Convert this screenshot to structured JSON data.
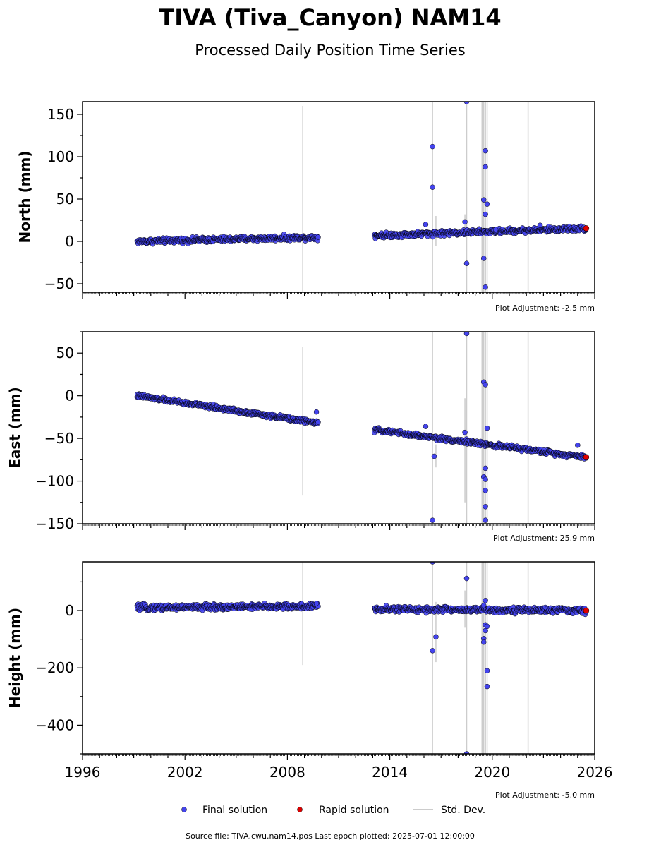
{
  "header": {
    "title": "TIVA (Tiva_Canyon) NAM14",
    "subtitle": "Processed Daily Position Time Series"
  },
  "footer": {
    "source": "Source file: TIVA.cwu.nam14.pos  Last epoch plotted: 2025-07-01 12:00:00"
  },
  "legend": {
    "final": "Final solution",
    "rapid": "Rapid solution",
    "std": "Std. Dev."
  },
  "colors": {
    "final": "#4444ee",
    "rapid": "#dd0000",
    "stddev": "#bbbbbb",
    "edge": "#000000"
  },
  "chart_data": [
    {
      "type": "scatter",
      "id": "north",
      "ylabel": "North (mm)",
      "ylim": [
        -60,
        165
      ],
      "yticks": [
        -50,
        0,
        50,
        100,
        150
      ],
      "xlim": [
        1996,
        2026
      ],
      "adjustment": "Plot Adjustment: -2.5 mm",
      "trend_segments": [
        [
          1999.2,
          0.0,
          2009.8,
          5.0
        ],
        [
          2013.1,
          7.0,
          2025.5,
          15.5
        ]
      ],
      "scatter": 3,
      "outliers": [
        [
          2016.5,
          112
        ],
        [
          2016.5,
          64
        ],
        [
          2018.5,
          165
        ],
        [
          2018.5,
          -26
        ],
        [
          2018.4,
          23
        ],
        [
          2019.6,
          107
        ],
        [
          2019.6,
          88
        ],
        [
          2019.5,
          49
        ],
        [
          2019.7,
          44
        ],
        [
          2019.6,
          32
        ],
        [
          2019.5,
          -20
        ],
        [
          2019.6,
          -54
        ],
        [
          2016.1,
          20
        ],
        [
          2022.8,
          19
        ],
        [
          2020.2,
          14
        ]
      ],
      "errorbars": [
        [
          2008.9,
          -60,
          160
        ],
        [
          2016.5,
          -60,
          165
        ],
        [
          2018.5,
          -60,
          165
        ],
        [
          2019.4,
          -60,
          165
        ],
        [
          2019.5,
          -60,
          165
        ],
        [
          2019.6,
          -60,
          165
        ],
        [
          2019.7,
          -60,
          165
        ],
        [
          2022.1,
          -60,
          165
        ],
        [
          2016.7,
          -5,
          30
        ],
        [
          2018.4,
          5,
          32
        ]
      ],
      "rapid": [
        2025.5,
        15.5
      ]
    },
    {
      "type": "scatter",
      "id": "east",
      "ylabel": "East (mm)",
      "ylim": [
        -150,
        75
      ],
      "yticks": [
        -150,
        -100,
        -50,
        0,
        50
      ],
      "xlim": [
        1996,
        2026
      ],
      "adjustment": "Plot Adjustment: 25.9 mm",
      "trend_segments": [
        [
          1999.2,
          0.0,
          2009.8,
          -32.0
        ],
        [
          2013.1,
          -40.0,
          2025.5,
          -72.0
        ]
      ],
      "scatter": 2.5,
      "outliers": [
        [
          2018.5,
          73
        ],
        [
          2019.5,
          16
        ],
        [
          2019.6,
          13
        ],
        [
          2019.7,
          -38
        ],
        [
          2019.6,
          -85
        ],
        [
          2019.5,
          -95
        ],
        [
          2019.6,
          -98
        ],
        [
          2019.6,
          -111
        ],
        [
          2019.6,
          -130
        ],
        [
          2019.6,
          -146
        ],
        [
          2016.5,
          -146
        ],
        [
          2016.6,
          -71
        ],
        [
          2018.4,
          -43
        ],
        [
          2016.1,
          -36
        ],
        [
          2009.7,
          -19
        ],
        [
          2025.0,
          -58
        ]
      ],
      "errorbars": [
        [
          2008.9,
          -117,
          57
        ],
        [
          2016.5,
          -150,
          75
        ],
        [
          2018.5,
          -150,
          75
        ],
        [
          2019.4,
          -150,
          75
        ],
        [
          2019.5,
          -150,
          75
        ],
        [
          2019.6,
          -150,
          75
        ],
        [
          2019.7,
          -150,
          75
        ],
        [
          2022.1,
          -150,
          75
        ],
        [
          2016.7,
          -84,
          -57
        ],
        [
          2018.4,
          -125,
          -3
        ]
      ],
      "rapid": [
        2025.5,
        -72.0
      ]
    },
    {
      "type": "scatter",
      "id": "height",
      "ylabel": "Height (mm)",
      "ylim": [
        -500,
        170
      ],
      "yticks": [
        -400,
        -200,
        0
      ],
      "xlim": [
        1996,
        2026
      ],
      "xticks": [
        1996,
        2002,
        2008,
        2014,
        2020,
        2026
      ],
      "adjustment": "Plot Adjustment: -5.0 mm",
      "trend_segments": [
        [
          1999.2,
          10.0,
          2009.8,
          15.0
        ],
        [
          2013.1,
          5.0,
          2025.5,
          0.0
        ]
      ],
      "scatter": 10,
      "outliers": [
        [
          2016.5,
          170
        ],
        [
          2018.5,
          112
        ],
        [
          2016.5,
          -140
        ],
        [
          2016.7,
          -92
        ],
        [
          2019.5,
          -98
        ],
        [
          2019.5,
          -110
        ],
        [
          2019.6,
          -70
        ],
        [
          2019.6,
          -50
        ],
        [
          2019.7,
          -55
        ],
        [
          2019.7,
          -210
        ],
        [
          2019.7,
          -265
        ],
        [
          2018.5,
          -500
        ],
        [
          2019.6,
          35
        ],
        [
          2019.5,
          18
        ],
        [
          2009.7,
          25
        ]
      ],
      "errorbars": [
        [
          2008.9,
          -190,
          170
        ],
        [
          2016.5,
          -500,
          170
        ],
        [
          2018.5,
          -500,
          170
        ],
        [
          2019.4,
          -500,
          170
        ],
        [
          2019.5,
          -500,
          170
        ],
        [
          2019.6,
          -500,
          170
        ],
        [
          2019.7,
          -500,
          170
        ],
        [
          2022.1,
          -500,
          170
        ],
        [
          2016.7,
          -180,
          30
        ],
        [
          2018.4,
          -60,
          70
        ]
      ],
      "rapid": [
        2025.5,
        0.0
      ]
    }
  ]
}
